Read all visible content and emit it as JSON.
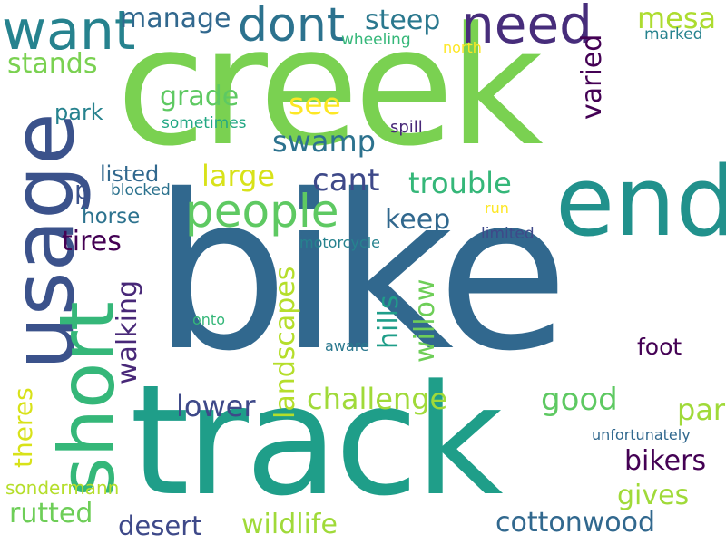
{
  "words": [
    {
      "text": "creek",
      "color": "#7ad151"
    },
    {
      "text": "bike",
      "color": "#31688e"
    },
    {
      "text": "track",
      "color": "#1f9e89"
    },
    {
      "text": "usage",
      "color": "#3b528b"
    },
    {
      "text": "end",
      "color": "#21918c"
    },
    {
      "text": "short",
      "color": "#35b779"
    },
    {
      "text": "need",
      "color": "#472d7b"
    },
    {
      "text": "want",
      "color": "#26828e"
    },
    {
      "text": "dont",
      "color": "#2c728e"
    },
    {
      "text": "people",
      "color": "#5ec962"
    },
    {
      "text": "manage",
      "color": "#31688e"
    },
    {
      "text": "steep",
      "color": "#2a788e"
    },
    {
      "text": "mesa",
      "color": "#addc30"
    },
    {
      "text": "wheeling",
      "color": "#35b779"
    },
    {
      "text": "north",
      "color": "#fde725"
    },
    {
      "text": "marked",
      "color": "#26828e"
    },
    {
      "text": "stands",
      "color": "#7ad151"
    },
    {
      "text": "varied",
      "color": "#440154"
    },
    {
      "text": "grade",
      "color": "#5ec962"
    },
    {
      "text": "see",
      "color": "#fde725"
    },
    {
      "text": "park",
      "color": "#26828e"
    },
    {
      "text": "sometimes",
      "color": "#22a884"
    },
    {
      "text": "spill",
      "color": "#482878"
    },
    {
      "text": "swamp",
      "color": "#2c728e"
    },
    {
      "text": "cant",
      "color": "#3e4989"
    },
    {
      "text": "large",
      "color": "#d8e219"
    },
    {
      "text": "listed",
      "color": "#31688e"
    },
    {
      "text": "trouble",
      "color": "#35b779"
    },
    {
      "text": "p",
      "color": "#3b528b"
    },
    {
      "text": "blocked",
      "color": "#2c728e"
    },
    {
      "text": "keep",
      "color": "#31688e"
    },
    {
      "text": "horse",
      "color": "#2c728e"
    },
    {
      "text": "run",
      "color": "#fde725"
    },
    {
      "text": "tires",
      "color": "#440154"
    },
    {
      "text": "limited",
      "color": "#3e4989"
    },
    {
      "text": "motorcycle",
      "color": "#26828e"
    },
    {
      "text": "walking",
      "color": "#482878"
    },
    {
      "text": "landscapes",
      "color": "#b5de2b"
    },
    {
      "text": "hills",
      "color": "#1f9e89"
    },
    {
      "text": "willow",
      "color": "#6ece58"
    },
    {
      "text": "onto",
      "color": "#35b779"
    },
    {
      "text": "aware",
      "color": "#2a788e"
    },
    {
      "text": "foot",
      "color": "#440154"
    },
    {
      "text": "theres",
      "color": "#d8e219"
    },
    {
      "text": "lower",
      "color": "#3e4989"
    },
    {
      "text": "challenge",
      "color": "#a0da39"
    },
    {
      "text": "good",
      "color": "#5ec962"
    },
    {
      "text": "part",
      "color": "#a0da39"
    },
    {
      "text": "unfortunately",
      "color": "#31688e"
    },
    {
      "text": "bikers",
      "color": "#440154"
    },
    {
      "text": "sondermann",
      "color": "#b5de2b"
    },
    {
      "text": "gives",
      "color": "#a0da39"
    },
    {
      "text": "rutted",
      "color": "#6ece58"
    },
    {
      "text": "desert",
      "color": "#3e4989"
    },
    {
      "text": "wildlife",
      "color": "#a0da39"
    },
    {
      "text": "cottonwood",
      "color": "#31688e"
    }
  ]
}
